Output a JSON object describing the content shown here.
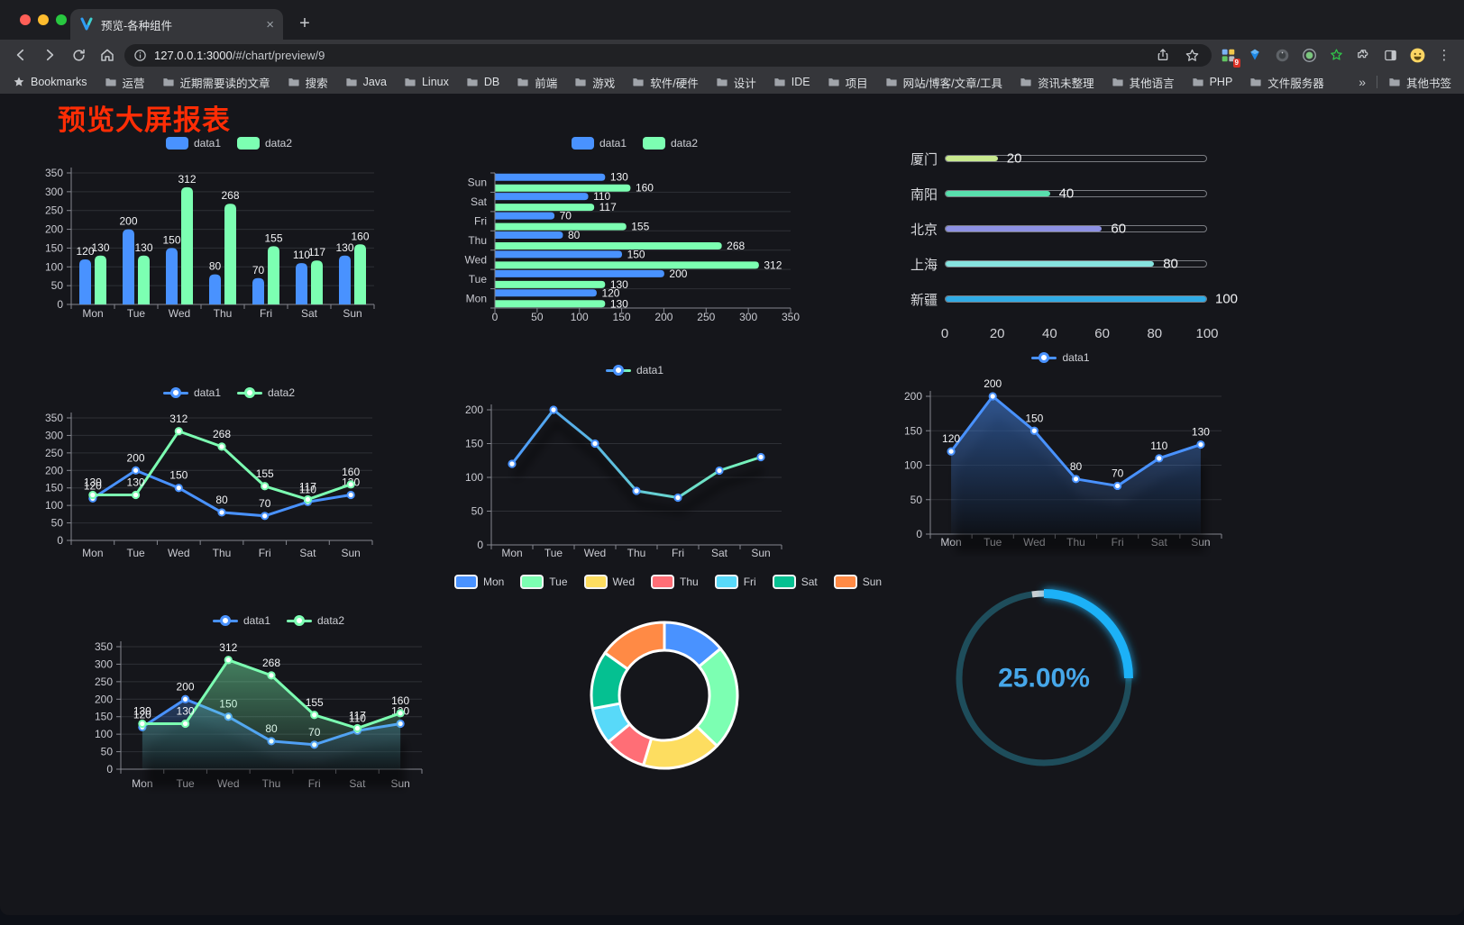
{
  "browser": {
    "tab": {
      "title": "预览-各种组件",
      "close_glyph": "×",
      "new_tab_glyph": "+"
    },
    "address": {
      "url_host": "127.0.0.1:3000",
      "url_path": "/#/chart/preview/9"
    },
    "toolbar": {
      "extension_badge": "9",
      "menu_glyph": "⋮"
    },
    "bookmarks": {
      "label": "Bookmarks",
      "items": [
        "运营",
        "近期需要读的文章",
        "搜索",
        "Java",
        "Linux",
        "DB",
        "前端",
        "游戏",
        "软件/硬件",
        "设计",
        "IDE",
        "项目",
        "网站/博客/文章/工具",
        "资讯未整理",
        "其他语言",
        "PHP",
        "文件服务器"
      ],
      "overflow_glyph": "»",
      "other_label": "其他书签"
    }
  },
  "page": {
    "title": "预览大屏报表",
    "title_color": "#ff2d05"
  },
  "chart_data": [
    {
      "id": "bar-vertical",
      "type": "bar",
      "categories": [
        "Mon",
        "Tue",
        "Wed",
        "Thu",
        "Fri",
        "Sat",
        "Sun"
      ],
      "series": [
        {
          "name": "data1",
          "color": "#4992ff",
          "values": [
            120,
            200,
            150,
            80,
            70,
            110,
            130
          ]
        },
        {
          "name": "data2",
          "color": "#7cffb2",
          "values": [
            130,
            130,
            312,
            268,
            155,
            117,
            160
          ]
        }
      ],
      "ylim": [
        0,
        350
      ],
      "ystep": 50,
      "legend_position": "top",
      "value_labels": true
    },
    {
      "id": "bar-horizontal",
      "type": "bar-horizontal",
      "categories": [
        "Mon",
        "Tue",
        "Wed",
        "Thu",
        "Fri",
        "Sat",
        "Sun"
      ],
      "series": [
        {
          "name": "data1",
          "color": "#4992ff",
          "values": [
            120,
            200,
            150,
            80,
            70,
            110,
            130
          ]
        },
        {
          "name": "data2",
          "color": "#7cffb2",
          "values": [
            130,
            130,
            312,
            268,
            155,
            117,
            160
          ]
        }
      ],
      "xlim": [
        0,
        350
      ],
      "xstep": 50,
      "legend_position": "top",
      "value_labels": true
    },
    {
      "id": "progress-bars",
      "type": "progress",
      "xlim": [
        0,
        100
      ],
      "xticks": [
        0,
        20,
        40,
        60,
        80,
        100
      ],
      "items": [
        {
          "label": "厦门",
          "value": 20,
          "color": "#c8e98f"
        },
        {
          "label": "南阳",
          "value": 40,
          "color": "#58dfad"
        },
        {
          "label": "北京",
          "value": 60,
          "color": "#8d91e3"
        },
        {
          "label": "上海",
          "value": 80,
          "color": "#86e3df"
        },
        {
          "label": "新疆",
          "value": 100,
          "color": "#30abe5"
        }
      ]
    },
    {
      "id": "line-dual",
      "type": "line",
      "categories": [
        "Mon",
        "Tue",
        "Wed",
        "Thu",
        "Fri",
        "Sat",
        "Sun"
      ],
      "series": [
        {
          "name": "data1",
          "color": "#4992ff",
          "values": [
            120,
            200,
            150,
            80,
            70,
            110,
            130
          ]
        },
        {
          "name": "data2",
          "color": "#7cffb2",
          "values": [
            130,
            130,
            312,
            268,
            155,
            117,
            160
          ]
        }
      ],
      "ylim": [
        0,
        350
      ],
      "ystep": 50,
      "value_labels": true
    },
    {
      "id": "line-gradient",
      "type": "line",
      "categories": [
        "Mon",
        "Tue",
        "Wed",
        "Thu",
        "Fri",
        "Sat",
        "Sun"
      ],
      "series": [
        {
          "name": "data1",
          "gradient": [
            "#4992ff",
            "#7cffb2"
          ],
          "values": [
            120,
            200,
            150,
            80,
            70,
            110,
            130
          ]
        }
      ],
      "ylim": [
        0,
        200
      ],
      "ystep": 50,
      "value_labels": false,
      "line_shadow": true
    },
    {
      "id": "line-area",
      "type": "area",
      "categories": [
        "Mon",
        "Tue",
        "Wed",
        "Thu",
        "Fri",
        "Sat",
        "Sun"
      ],
      "series": [
        {
          "name": "data1",
          "color": "#4992ff",
          "values": [
            120,
            200,
            150,
            80,
            70,
            110,
            130
          ],
          "area": true
        }
      ],
      "ylim": [
        0,
        200
      ],
      "ystep": 50,
      "value_labels": true,
      "area_shadow": true
    },
    {
      "id": "line-dual-area",
      "type": "area",
      "categories": [
        "Mon",
        "Tue",
        "Wed",
        "Thu",
        "Fri",
        "Sat",
        "Sun"
      ],
      "series": [
        {
          "name": "data1",
          "color": "#4992ff",
          "values": [
            120,
            200,
            150,
            80,
            70,
            110,
            130
          ],
          "area": true
        },
        {
          "name": "data2",
          "color": "#7cffb2",
          "values": [
            130,
            130,
            312,
            268,
            155,
            117,
            160
          ],
          "area": true
        }
      ],
      "ylim": [
        0,
        350
      ],
      "ystep": 50,
      "value_labels": true,
      "area_shadow": true
    },
    {
      "id": "donut",
      "type": "pie",
      "labels": [
        "Mon",
        "Tue",
        "Wed",
        "Thu",
        "Fri",
        "Sat",
        "Sun"
      ],
      "values": [
        120,
        200,
        150,
        80,
        70,
        110,
        130
      ],
      "colors": [
        "#4992ff",
        "#7cffb2",
        "#fddd60",
        "#ff6e76",
        "#58d9f9",
        "#05c091",
        "#ff8a45"
      ],
      "inner_radius_ratio": 0.62,
      "border_color": "#ffffff"
    },
    {
      "id": "gauge",
      "type": "gauge",
      "value": 25,
      "display": "25.00%",
      "min": 0,
      "max": 100,
      "arc_color": "#1bb1f7",
      "track_color": "#1e4d5b",
      "text_color": "#46a7e9"
    }
  ]
}
